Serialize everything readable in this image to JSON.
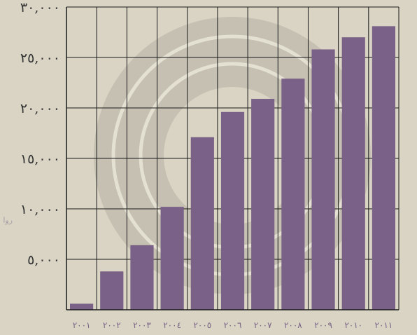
{
  "chart_data": {
    "type": "bar",
    "categories": [
      "٢٠٠١",
      "٢٠٠٢",
      "٢٠٠٣",
      "٢٠٠٤",
      "٢٠٠٥",
      "٢٠٠٦",
      "٢٠٠٧",
      "٢٠٠٨",
      "٢٠٠٩",
      "٢٠١٠",
      "٢٠١١"
    ],
    "values": [
      600,
      3800,
      6400,
      10200,
      17100,
      19600,
      20900,
      22900,
      25800,
      27000,
      28100
    ],
    "ylim": [
      0,
      30000
    ],
    "yticks": [
      0,
      5000,
      10000,
      15000,
      20000,
      25000,
      30000
    ],
    "ytick_labels": [
      "",
      "٥,٠٠٠",
      "١٠,٠٠٠",
      "١٥,٠٠٠",
      "٢٠,٠٠٠",
      "٢٥,٠٠٠",
      "٣٠,٠٠٠"
    ],
    "ylabel": "روا",
    "xlabel": "",
    "title": "",
    "grid": true,
    "colors": {
      "bar": "#7a6187",
      "grid": "#1a1a1a",
      "background": "#d9d4c4",
      "watermark": "#bdb9ab",
      "ytick": "#333333",
      "xtick": "#7a6487"
    }
  }
}
